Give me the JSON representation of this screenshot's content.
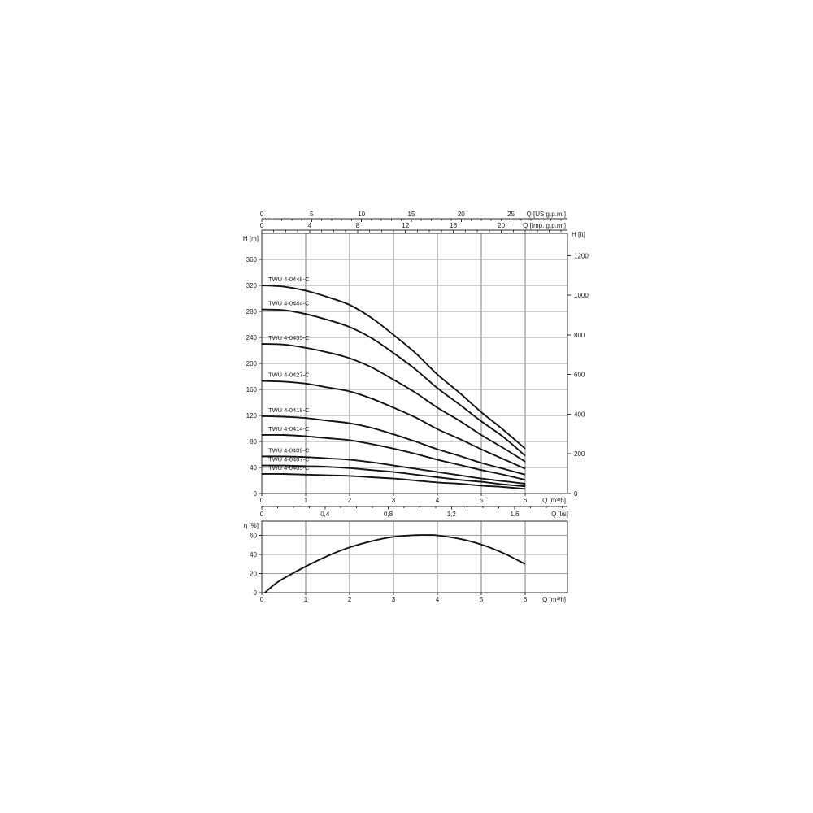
{
  "page": {
    "background": "#ffffff"
  },
  "colors": {
    "curve": "#141414",
    "grid_vertical": "#7d7d7d",
    "grid_horizontal": "#9f9f9f",
    "frame": "#2e2e2e",
    "axis_line": "#2e2e2e",
    "tick": "#2e2e2e",
    "text": "#1a1a1a"
  },
  "chart_data": [
    {
      "id": "head_chart",
      "type": "line",
      "title": "",
      "xlabel": "Q [m³/h]",
      "ylabel_left": "H [m]",
      "ylabel_right": "H [ft]",
      "xlim": [
        0,
        6.96
      ],
      "ylim": [
        0,
        400
      ],
      "grid": true,
      "x_major_ticks": [
        0,
        1,
        2,
        3,
        4,
        5,
        6
      ],
      "y_major_ticks": [
        0,
        40,
        80,
        120,
        160,
        200,
        240,
        280,
        320,
        360
      ],
      "right_axis": {
        "label": "H [ft]",
        "ticks": [
          0,
          200,
          400,
          600,
          800,
          1000,
          1200
        ],
        "meters_per_unit": 0.3048
      },
      "us_gpm_axis": {
        "label": "Q [US g.p.m.]",
        "ticks": [
          0,
          5,
          10,
          15,
          20,
          25
        ],
        "minor_step": 1,
        "m3h_per_unit": 0.22712
      },
      "imp_gpm_axis": {
        "label": "Q [Imp. g.p.m.]",
        "ticks": [
          0,
          4,
          8,
          12,
          16,
          20
        ],
        "minor_step": 1,
        "m3h_per_unit": 0.27276
      },
      "ls_axis": {
        "label": "Q [l/s]",
        "ticks": [
          {
            "value": 0,
            "text": "0"
          },
          {
            "value": 0.4,
            "text": "0,4"
          },
          {
            "value": 0.8,
            "text": "0,8"
          },
          {
            "value": 1.2,
            "text": "1,2"
          },
          {
            "value": 1.6,
            "text": "1,6"
          }
        ],
        "minor_step": 0.1,
        "m3h_per_unit": 3.6
      },
      "q_values": [
        0,
        0.5,
        1,
        1.5,
        2,
        2.5,
        3,
        3.5,
        4,
        4.5,
        5,
        5.5,
        6
      ],
      "series": [
        {
          "name": "TWU 4-0448-C",
          "heads": [
            320,
            318,
            312,
            302,
            290,
            270,
            244,
            216,
            183,
            155,
            125,
            98,
            69
          ]
        },
        {
          "name": "TWU 4-0444-C",
          "heads": [
            283,
            282,
            276,
            267,
            256,
            239,
            216,
            191,
            162,
            137,
            111,
            87,
            58
          ]
        },
        {
          "name": "TWU 4-0435-C",
          "heads": [
            230,
            229,
            224,
            217,
            208,
            194,
            175,
            155,
            132,
            112,
            90,
            70,
            49
          ]
        },
        {
          "name": "TWU 4-0427-C",
          "heads": [
            173,
            172,
            169,
            163,
            157,
            146,
            132,
            117,
            99,
            84,
            68,
            53,
            38
          ]
        },
        {
          "name": "TWU 4-0418-C",
          "heads": [
            119,
            118,
            116,
            112,
            108,
            101,
            91,
            80,
            68,
            58,
            47,
            38,
            29
          ]
        },
        {
          "name": "TWU 4-0414-C",
          "heads": [
            90,
            90,
            88,
            85,
            82,
            76,
            69,
            61,
            52,
            44,
            36,
            29,
            21
          ]
        },
        {
          "name": "TWU 4-0409-C",
          "heads": [
            57,
            57,
            56,
            54,
            52,
            48,
            43,
            38,
            33,
            28,
            23,
            19,
            15
          ]
        },
        {
          "name": "TWU 4-0407-C",
          "heads": [
            43,
            43,
            42,
            41,
            39,
            36,
            33,
            29,
            25,
            21,
            18,
            14,
            11
          ]
        },
        {
          "name": "TWU 4-0405-C",
          "heads": [
            30,
            30,
            29,
            28,
            27,
            25,
            23,
            20,
            17,
            15,
            12,
            10,
            7
          ]
        }
      ]
    },
    {
      "id": "efficiency_chart",
      "type": "line",
      "title": "",
      "xlabel": "Q [m³/h]",
      "ylabel": "η [%]",
      "xlim": [
        0,
        6.96
      ],
      "ylim": [
        0,
        75
      ],
      "grid": true,
      "x_major_ticks": [
        0,
        1,
        2,
        3,
        4,
        5,
        6
      ],
      "y_major_ticks": [
        0,
        20,
        40,
        60
      ],
      "series": [
        {
          "name": "efficiency",
          "points": [
            [
              0.07,
              0
            ],
            [
              0.3,
              9
            ],
            [
              0.5,
              15
            ],
            [
              1,
              27.5
            ],
            [
              1.5,
              38.5
            ],
            [
              2,
              47.5
            ],
            [
              2.5,
              54
            ],
            [
              3,
              58.5
            ],
            [
              3.5,
              60.3
            ],
            [
              3.8,
              60.4
            ],
            [
              4,
              60
            ],
            [
              4.5,
              56.5
            ],
            [
              5,
              50.5
            ],
            [
              5.5,
              41.5
            ],
            [
              6,
              30
            ]
          ]
        }
      ]
    }
  ]
}
